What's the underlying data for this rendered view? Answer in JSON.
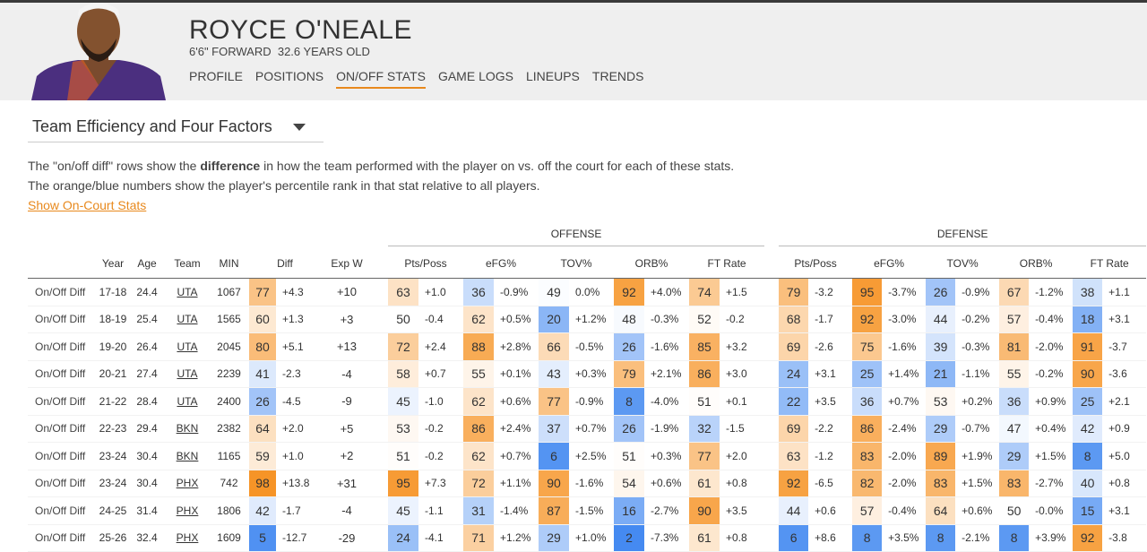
{
  "header": {
    "name": "ROYCE O'NEALE",
    "bio": "6'6\" FORWARD  32.6 YEARS OLD",
    "nav": [
      "PROFILE",
      "POSITIONS",
      "ON/OFF STATS",
      "GAME LOGS",
      "LINEUPS",
      "TRENDS"
    ],
    "active_nav": 2
  },
  "selector": {
    "label": "Team Efficiency and Four Factors"
  },
  "description": {
    "line1": [
      "The \"on/off diff\" rows show the ",
      "difference",
      " in how the team performed with the player on vs. off the court for each of these stats."
    ],
    "line2": "The orange/blue numbers show the player's percentile rank in that stat relative to all players.",
    "link": "Show On-Court Stats"
  },
  "table": {
    "groups": [
      "OFFENSE",
      "DEFENSE"
    ],
    "columns": [
      "Year",
      "Age",
      "Team",
      "MIN",
      "Diff",
      "Exp W",
      "Pts/Poss",
      "eFG%",
      "TOV%",
      "ORB%",
      "FT Rate",
      "Pts/Poss",
      "eFG%",
      "TOV%",
      "ORB%",
      "FT Rate"
    ],
    "rows": [
      [
        "On/Off Diff",
        "17-18",
        24.4,
        "UTA",
        1067,
        [
          77,
          "+4.3"
        ],
        "+10",
        [
          63,
          "+1.0"
        ],
        [
          36,
          "-0.9%"
        ],
        [
          49,
          "0.0%"
        ],
        [
          92,
          "+4.0%"
        ],
        [
          74,
          "+1.5"
        ],
        [
          79,
          "-3.2"
        ],
        [
          95,
          "-3.7%"
        ],
        [
          26,
          "-0.9%"
        ],
        [
          67,
          "-1.2%"
        ],
        [
          38,
          "+1.1"
        ]
      ],
      [
        "On/Off Diff",
        "18-19",
        25.4,
        "UTA",
        1565,
        [
          60,
          "+1.3"
        ],
        "+3",
        [
          50,
          "-0.4"
        ],
        [
          62,
          "+0.5%"
        ],
        [
          20,
          "+1.2%"
        ],
        [
          48,
          "-0.3%"
        ],
        [
          52,
          "-0.2"
        ],
        [
          68,
          "-1.7"
        ],
        [
          92,
          "-3.0%"
        ],
        [
          44,
          "-0.2%"
        ],
        [
          57,
          "-0.4%"
        ],
        [
          18,
          "+3.1"
        ]
      ],
      [
        "On/Off Diff",
        "19-20",
        26.4,
        "UTA",
        2045,
        [
          80,
          "+5.1"
        ],
        "+13",
        [
          72,
          "+2.4"
        ],
        [
          88,
          "+2.8%"
        ],
        [
          66,
          "-0.5%"
        ],
        [
          26,
          "-1.6%"
        ],
        [
          85,
          "+3.2"
        ],
        [
          69,
          "-2.6"
        ],
        [
          75,
          "-1.6%"
        ],
        [
          39,
          "-0.3%"
        ],
        [
          81,
          "-2.0%"
        ],
        [
          91,
          "-3.7"
        ]
      ],
      [
        "On/Off Diff",
        "20-21",
        27.4,
        "UTA",
        2239,
        [
          41,
          "-2.3"
        ],
        "-4",
        [
          58,
          "+0.7"
        ],
        [
          55,
          "+0.1%"
        ],
        [
          43,
          "+0.3%"
        ],
        [
          79,
          "+2.1%"
        ],
        [
          86,
          "+3.0"
        ],
        [
          24,
          "+3.1"
        ],
        [
          25,
          "+1.4%"
        ],
        [
          21,
          "-1.1%"
        ],
        [
          55,
          "-0.2%"
        ],
        [
          90,
          "-3.6"
        ]
      ],
      [
        "On/Off Diff",
        "21-22",
        28.4,
        "UTA",
        2400,
        [
          26,
          "-4.5"
        ],
        "-9",
        [
          45,
          "-1.0"
        ],
        [
          62,
          "+0.6%"
        ],
        [
          77,
          "-0.9%"
        ],
        [
          8,
          "-4.0%"
        ],
        [
          51,
          "+0.1"
        ],
        [
          22,
          "+3.5"
        ],
        [
          36,
          "+0.7%"
        ],
        [
          53,
          "+0.2%"
        ],
        [
          36,
          "+0.9%"
        ],
        [
          25,
          "+2.1"
        ]
      ],
      [
        "On/Off Diff",
        "22-23",
        29.4,
        "BKN",
        2382,
        [
          64,
          "+2.0"
        ],
        "+5",
        [
          53,
          "-0.2"
        ],
        [
          86,
          "+2.4%"
        ],
        [
          37,
          "+0.7%"
        ],
        [
          26,
          "-1.9%"
        ],
        [
          32,
          "-1.5"
        ],
        [
          69,
          "-2.2"
        ],
        [
          86,
          "-2.4%"
        ],
        [
          29,
          "-0.7%"
        ],
        [
          47,
          "+0.4%"
        ],
        [
          42,
          "+0.9"
        ]
      ],
      [
        "On/Off Diff",
        "23-24",
        30.4,
        "BKN",
        1165,
        [
          59,
          "+1.0"
        ],
        "+2",
        [
          51,
          "-0.2"
        ],
        [
          62,
          "+0.7%"
        ],
        [
          6,
          "+2.5%"
        ],
        [
          51,
          "+0.3%"
        ],
        [
          77,
          "+2.0"
        ],
        [
          63,
          "-1.2"
        ],
        [
          83,
          "-2.0%"
        ],
        [
          89,
          "+1.9%"
        ],
        [
          29,
          "+1.5%"
        ],
        [
          8,
          "+5.0"
        ]
      ],
      [
        "On/Off Diff",
        "23-24",
        30.4,
        "PHX",
        742,
        [
          98,
          "+13.8"
        ],
        "+31",
        [
          95,
          "+7.3"
        ],
        [
          72,
          "+1.1%"
        ],
        [
          90,
          "-1.6%"
        ],
        [
          54,
          "+0.6%"
        ],
        [
          61,
          "+0.8"
        ],
        [
          92,
          "-6.5"
        ],
        [
          82,
          "-2.0%"
        ],
        [
          83,
          "+1.5%"
        ],
        [
          83,
          "-2.7%"
        ],
        [
          40,
          "+0.8"
        ]
      ],
      [
        "On/Off Diff",
        "24-25",
        31.4,
        "PHX",
        1806,
        [
          42,
          "-1.7"
        ],
        "-4",
        [
          45,
          "-1.1"
        ],
        [
          31,
          "-1.4%"
        ],
        [
          87,
          "-1.5%"
        ],
        [
          16,
          "-2.7%"
        ],
        [
          90,
          "+3.5"
        ],
        [
          44,
          "+0.6"
        ],
        [
          57,
          "-0.4%"
        ],
        [
          64,
          "+0.6%"
        ],
        [
          50,
          "-0.0%"
        ],
        [
          15,
          "+3.1"
        ]
      ],
      [
        "On/Off Diff",
        "25-26",
        32.4,
        "PHX",
        1609,
        [
          5,
          "-12.7"
        ],
        "-29",
        [
          24,
          "-4.1"
        ],
        [
          71,
          "+1.2%"
        ],
        [
          29,
          "+1.0%"
        ],
        [
          2,
          "-7.3%"
        ],
        [
          61,
          "+0.8"
        ],
        [
          6,
          "+8.6"
        ],
        [
          8,
          "+3.5%"
        ],
        [
          8,
          "-2.1%"
        ],
        [
          8,
          "+3.9%"
        ],
        [
          92,
          "-3.8"
        ]
      ]
    ]
  }
}
